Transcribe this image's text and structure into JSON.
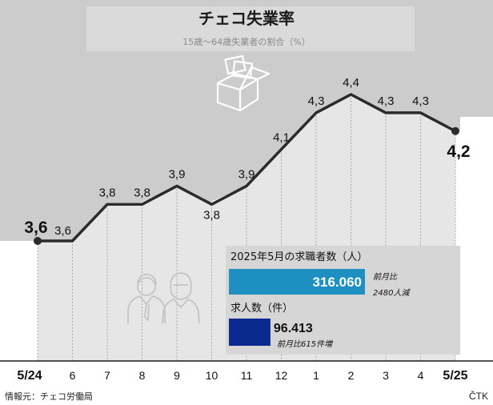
{
  "title": "チェコ失業率",
  "subtitle": "15歳〜64歳失業者の割合（%）",
  "source": "情報元：チェコ労働局",
  "credit": "ČTK",
  "icons": [
    "box-icon",
    "people-icon"
  ],
  "colors": {
    "line": "#2b2b2b",
    "area": "#e6e6e6",
    "header_bg": "#cccccc",
    "bar1": "#1e8fc1",
    "bar2": "#0a2a8f"
  },
  "chart_data": [
    {
      "type": "line",
      "x": [
        "5/24",
        "6",
        "7",
        "8",
        "9",
        "10",
        "11",
        "12",
        "1",
        "2",
        "3",
        "4",
        "5/25"
      ],
      "values": [
        3.6,
        3.6,
        3.8,
        3.8,
        3.9,
        3.8,
        3.9,
        4.1,
        4.3,
        4.4,
        4.3,
        4.3,
        4.2
      ],
      "labels": [
        "3,6",
        "3,6",
        "3,8",
        "3,8",
        "3,9",
        "3,8",
        "3,9",
        "4,1",
        "4,3",
        "4,4",
        "4,3",
        "4,3",
        "4,2"
      ],
      "title": "チェコ失業率",
      "subtitle": "15歳〜64歳失業者の割合（%）"
    },
    {
      "type": "bar",
      "series": [
        {
          "name": "2025年5月の求職者数（人）",
          "value": 316060,
          "label": "316.060",
          "note_lines": [
            "前月比",
            "2480人減"
          ]
        },
        {
          "name": "求人数（件）",
          "value": 96413,
          "label": "96.413",
          "note_lines": [
            "前月比615件増"
          ]
        }
      ]
    }
  ]
}
